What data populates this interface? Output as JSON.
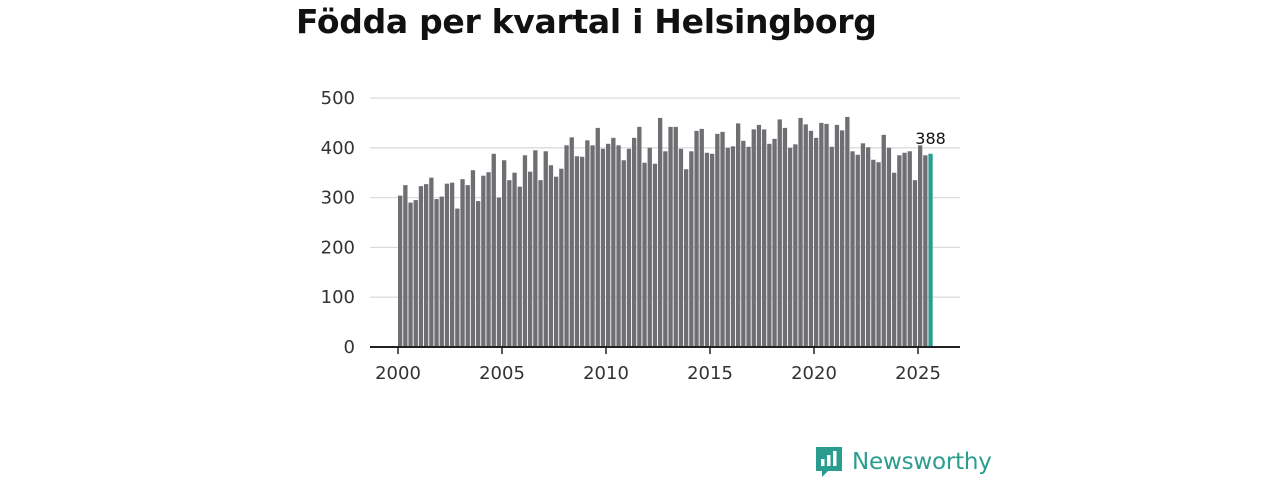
{
  "title": "Födda per kvartal i Helsingborg",
  "brand": {
    "name": "Newsworthy",
    "icon": "newsworthy-logo-icon",
    "color": "#2a9d8f"
  },
  "chart_data": {
    "type": "bar",
    "title": "Födda per kvartal i Helsingborg",
    "xlabel": "",
    "ylabel": "",
    "ylim": [
      0,
      500
    ],
    "yticks": [
      0,
      100,
      200,
      300,
      400,
      500
    ],
    "xticks": [
      2000,
      2005,
      2010,
      2015,
      2020,
      2025
    ],
    "x_start_year": 2000,
    "periods_per_year": 4,
    "bar_color": "#6e6e73",
    "highlight_color": "#2a9d8f",
    "grid": true,
    "highlight_index": 102,
    "highlight_label": "388",
    "values": [
      304,
      325,
      290,
      295,
      323,
      327,
      340,
      297,
      302,
      328,
      330,
      278,
      337,
      325,
      355,
      293,
      344,
      351,
      388,
      300,
      375,
      335,
      350,
      322,
      385,
      352,
      395,
      335,
      393,
      365,
      342,
      358,
      405,
      421,
      383,
      382,
      415,
      405,
      440,
      398,
      408,
      420,
      405,
      375,
      398,
      420,
      442,
      370,
      400,
      368,
      460,
      393,
      442,
      442,
      398,
      357,
      393,
      434,
      438,
      390,
      388,
      428,
      432,
      400,
      403,
      449,
      414,
      402,
      437,
      446,
      437,
      408,
      418,
      457,
      440,
      400,
      407,
      460,
      447,
      434,
      420,
      450,
      448,
      402,
      446,
      435,
      462,
      393,
      386,
      409,
      401,
      376,
      371,
      426,
      400,
      350,
      385,
      390,
      393,
      335,
      405,
      385,
      388
    ]
  }
}
